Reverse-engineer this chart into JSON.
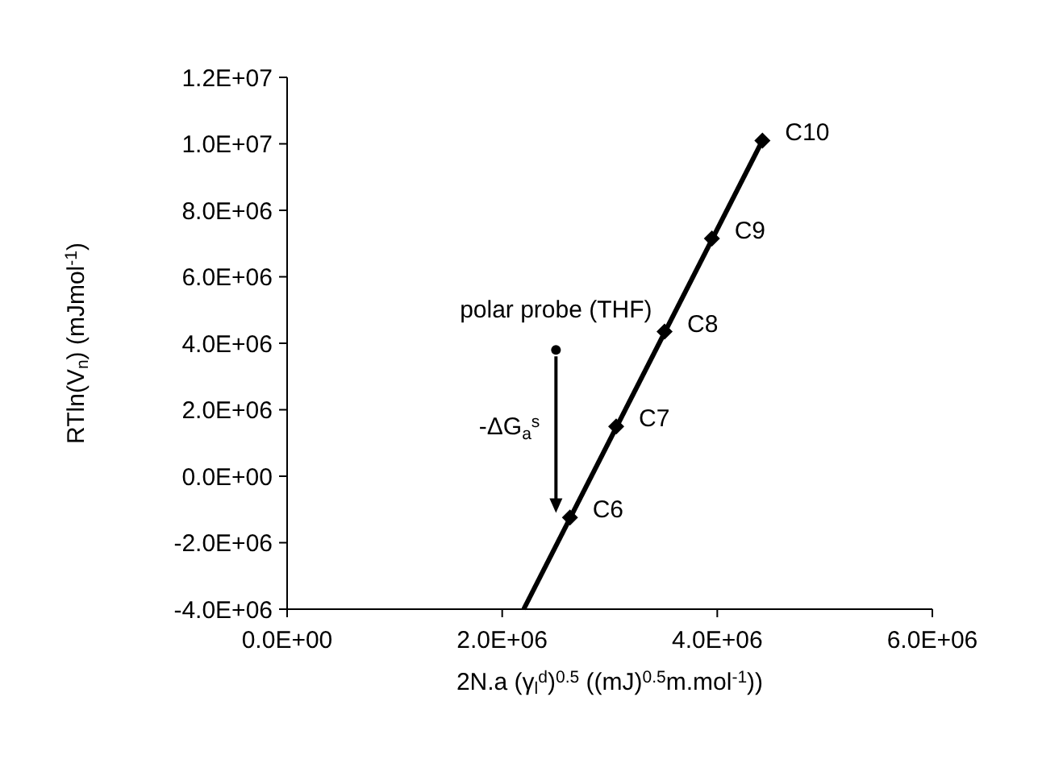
{
  "chart_data": {
    "type": "scatter",
    "xlabel": "2N.a (γ$_{l}$$^{d}$)$^{0.5}$ ((mJ)$^{0.5}$m.mol$^{-1}$))",
    "ylabel": "RTln(V$_{n}$) (mJmol$^{-1}$)",
    "xlim": [
      0,
      6000000
    ],
    "xticks": [
      {
        "value": 0,
        "label": "0.0E+00"
      },
      {
        "value": 2000000,
        "label": "2.0E+06"
      },
      {
        "value": 4000000,
        "label": "4.0E+06"
      },
      {
        "value": 6000000,
        "label": "6.0E+06"
      }
    ],
    "ylim": [
      -4000000,
      12000000
    ],
    "yticks": [
      {
        "value": -4000000,
        "label": "-4.0E+06"
      },
      {
        "value": -2000000,
        "label": "-2.0E+06"
      },
      {
        "value": 0,
        "label": "0.0E+00"
      },
      {
        "value": 2000000,
        "label": "2.0E+06"
      },
      {
        "value": 4000000,
        "label": "4.0E+06"
      },
      {
        "value": 6000000,
        "label": "6.0E+06"
      },
      {
        "value": 8000000,
        "label": "8.0E+06"
      },
      {
        "value": 10000000,
        "label": "1.0E+07"
      },
      {
        "value": 12000000,
        "label": "1.2E+07"
      }
    ],
    "grid": false,
    "series": [
      {
        "type": "line",
        "color": "#000000",
        "marker": "none",
        "line_style": "solid",
        "x": [
          2200000,
          4420000
        ],
        "values": [
          -4000000,
          10100000
        ]
      },
      {
        "color": "#000000",
        "marker": "diamond",
        "x": [
          2630000,
          3060000,
          3510000,
          3950000,
          4420000
        ],
        "values": [
          -1240000,
          1500000,
          4350000,
          7150000,
          10100000
        ]
      },
      {
        "color": "#000000",
        "marker": "circle",
        "x": [
          2500000
        ],
        "values": [
          3800000
        ]
      }
    ],
    "annotations": [
      {
        "text": "C6",
        "x": 2630000,
        "y": -1240000
      },
      {
        "text": "C7",
        "x": 3060000,
        "y": 1500000
      },
      {
        "text": "C8",
        "x": 3510000,
        "y": 4350000
      },
      {
        "text": "C9",
        "x": 3950000,
        "y": 7150000
      },
      {
        "text": "C10",
        "x": 4420000,
        "y": 10100000
      },
      {
        "text": "polar probe (THF)",
        "x": 2500000,
        "y": 3800000
      },
      {
        "text": "-ΔG$_{a}$$^{s}$",
        "x": 2500000,
        "y": -1100000
      }
    ]
  }
}
